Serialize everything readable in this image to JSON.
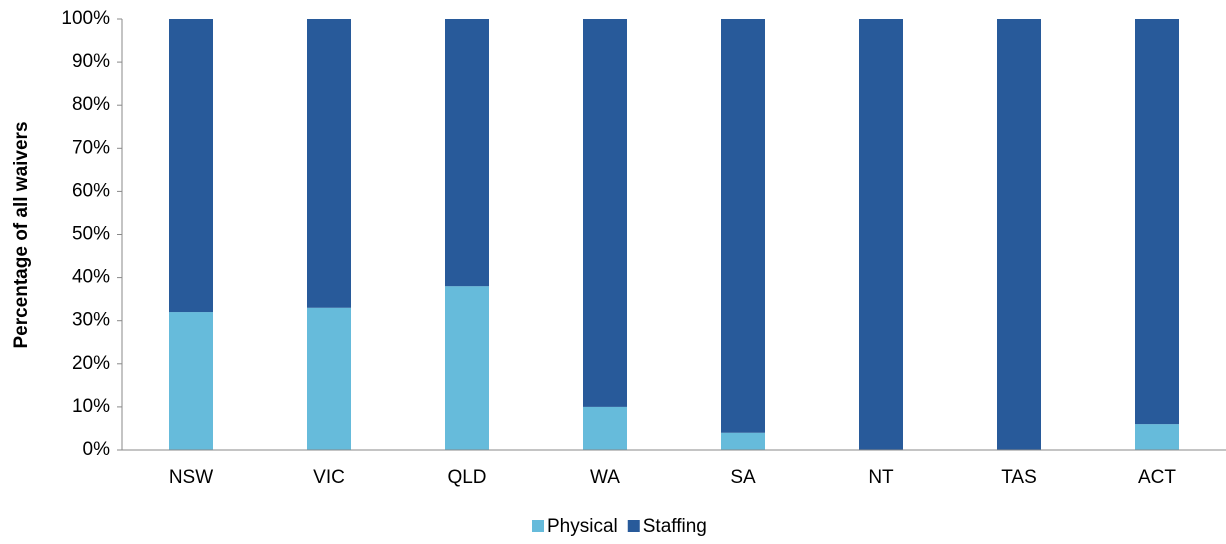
{
  "chart_data": {
    "type": "stacked_bar",
    "y_label": "Percentage of all waivers",
    "categories": [
      "NSW",
      "VIC",
      "QLD",
      "WA",
      "SA",
      "NT",
      "TAS",
      "ACT"
    ],
    "series": [
      {
        "name": "Physical",
        "color": "#66bbdb",
        "values": [
          32,
          33,
          38,
          10,
          4,
          0,
          0,
          6
        ]
      },
      {
        "name": "Staffing",
        "color": "#285a9a",
        "values": [
          68,
          67,
          62,
          90,
          96,
          100,
          100,
          94
        ]
      }
    ],
    "ylim": [
      0,
      100
    ],
    "yticks": [
      {
        "value": 0,
        "label": "0%"
      },
      {
        "value": 10,
        "label": "10%"
      },
      {
        "value": 20,
        "label": "20%"
      },
      {
        "value": 30,
        "label": "30%"
      },
      {
        "value": 40,
        "label": "40%"
      },
      {
        "value": 50,
        "label": "50%"
      },
      {
        "value": 60,
        "label": "60%"
      },
      {
        "value": 70,
        "label": "70%"
      },
      {
        "value": 80,
        "label": "80%"
      },
      {
        "value": 90,
        "label": "90%"
      },
      {
        "value": 100,
        "label": "100%"
      }
    ],
    "legend": "bottom"
  }
}
